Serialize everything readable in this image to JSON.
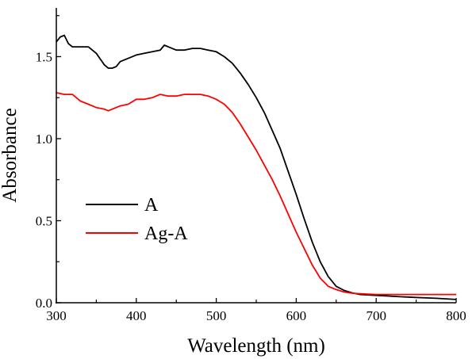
{
  "chart_data": {
    "type": "line",
    "title": "",
    "xlabel": "Wavelength (nm)",
    "ylabel": "Absorbance",
    "xlim": [
      300,
      800
    ],
    "ylim": [
      0,
      1.8
    ],
    "x_ticks": [
      300,
      400,
      500,
      600,
      700,
      800
    ],
    "x_tick_labels": [
      "300",
      "400",
      "500",
      "600",
      "700",
      "800"
    ],
    "x_minor_step": 50,
    "y_ticks": [
      0.0,
      0.5,
      1.0,
      1.5
    ],
    "y_tick_labels": [
      "0.0",
      "0.5",
      "1.0",
      "1.5"
    ],
    "y_minor_step": 0.25,
    "grid": false,
    "legend_position": "center-left",
    "series": [
      {
        "name": "A",
        "color": "#000000",
        "x": [
          300,
          305,
          310,
          315,
          320,
          330,
          340,
          350,
          360,
          365,
          370,
          375,
          380,
          390,
          400,
          410,
          420,
          430,
          435,
          440,
          450,
          460,
          470,
          480,
          490,
          500,
          510,
          520,
          530,
          540,
          550,
          560,
          570,
          580,
          590,
          600,
          610,
          620,
          630,
          640,
          650,
          660,
          670,
          680,
          700,
          725,
          750,
          775,
          800
        ],
        "values": [
          1.59,
          1.62,
          1.63,
          1.58,
          1.56,
          1.56,
          1.56,
          1.52,
          1.45,
          1.43,
          1.43,
          1.44,
          1.47,
          1.49,
          1.51,
          1.52,
          1.53,
          1.54,
          1.57,
          1.56,
          1.54,
          1.54,
          1.55,
          1.55,
          1.54,
          1.53,
          1.5,
          1.46,
          1.4,
          1.33,
          1.25,
          1.16,
          1.05,
          0.94,
          0.8,
          0.66,
          0.51,
          0.37,
          0.25,
          0.16,
          0.1,
          0.075,
          0.06,
          0.05,
          0.045,
          0.038,
          0.032,
          0.027,
          0.02
        ]
      },
      {
        "name": "Ag-A",
        "color": "#ff0000",
        "x": [
          300,
          310,
          320,
          330,
          340,
          350,
          360,
          365,
          370,
          380,
          390,
          400,
          410,
          420,
          430,
          440,
          450,
          460,
          470,
          480,
          490,
          500,
          510,
          520,
          530,
          540,
          550,
          560,
          570,
          580,
          590,
          600,
          610,
          620,
          630,
          640,
          650,
          660,
          670,
          680,
          700,
          725,
          750,
          775,
          800
        ],
        "values": [
          1.28,
          1.27,
          1.27,
          1.23,
          1.21,
          1.19,
          1.18,
          1.17,
          1.18,
          1.2,
          1.21,
          1.24,
          1.24,
          1.25,
          1.27,
          1.26,
          1.26,
          1.27,
          1.27,
          1.27,
          1.26,
          1.24,
          1.21,
          1.16,
          1.09,
          1.01,
          0.93,
          0.84,
          0.75,
          0.65,
          0.54,
          0.43,
          0.33,
          0.23,
          0.15,
          0.1,
          0.08,
          0.065,
          0.058,
          0.055,
          0.05,
          0.05,
          0.05,
          0.05,
          0.05
        ]
      }
    ]
  }
}
